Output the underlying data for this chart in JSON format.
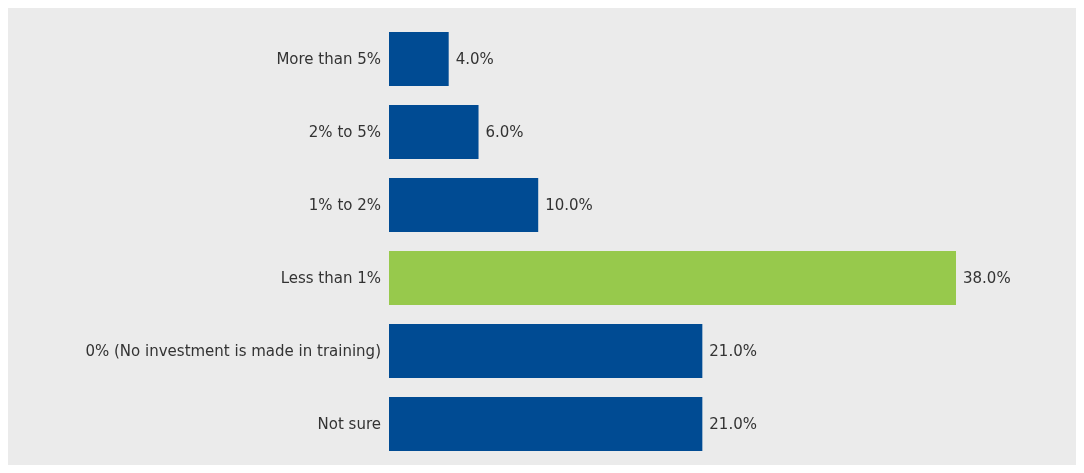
{
  "chart_data": {
    "type": "bar",
    "orientation": "horizontal",
    "categories": [
      "More than 5%",
      "2% to 5%",
      "1% to 2%",
      "Less than 1%",
      "0% (No investment is made in training)",
      "Not sure"
    ],
    "values": [
      4.0,
      6.0,
      10.0,
      38.0,
      21.0,
      21.0
    ],
    "colors": [
      "#004b93",
      "#004b93",
      "#004b93",
      "#97c94c",
      "#004b93",
      "#004b93"
    ],
    "value_labels": [
      "4.0%",
      "6.0%",
      "10.0%",
      "38.0%",
      "21.0%",
      "21.0%"
    ]
  }
}
